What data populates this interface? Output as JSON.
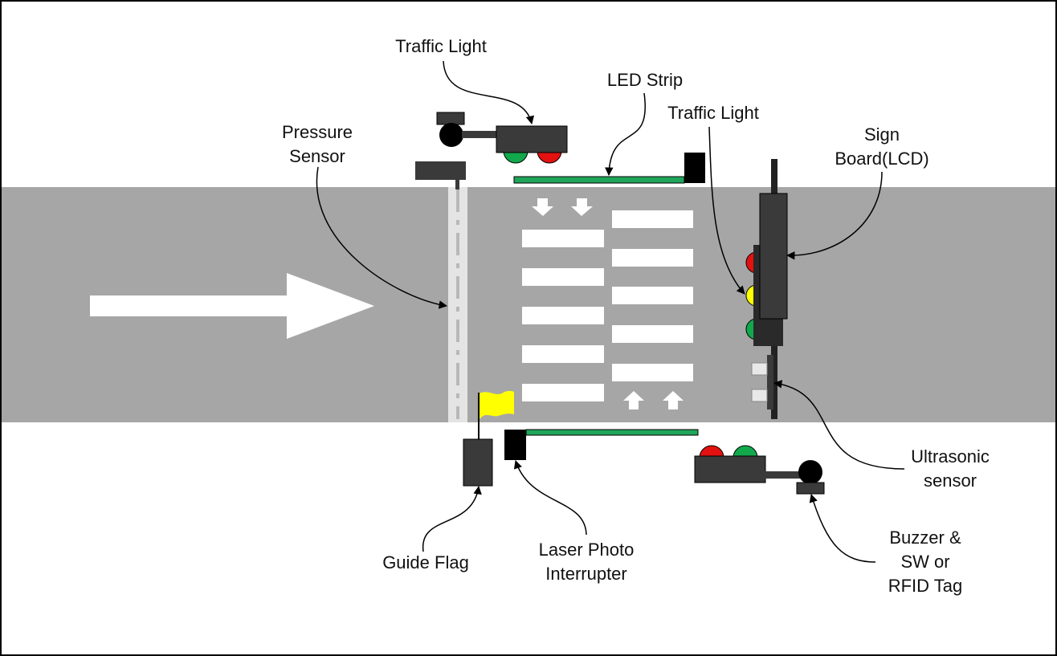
{
  "labels": {
    "traffic_light_top": "Traffic Light",
    "led_strip": "LED Strip",
    "traffic_light_right": "Traffic Light",
    "pressure_sensor_1": "Pressure",
    "pressure_sensor_2": "Sensor",
    "sign_board_1": "Sign",
    "sign_board_2": "Board(LCD)",
    "ultrasonic_1": "Ultrasonic",
    "ultrasonic_2": "sensor",
    "guide_flag": "Guide Flag",
    "laser_1": "Laser Photo",
    "laser_2": "Interrupter",
    "buzzer_1": "Buzzer &",
    "buzzer_2": "SW or",
    "buzzer_3": "RFID Tag"
  },
  "colors": {
    "road": "#a6a6a6",
    "device": "#3a3a3a",
    "led": "#1fa55a",
    "red": "#e3110f",
    "yellow": "#ffff00",
    "green": "#12a84c",
    "stripe": "#ffffff"
  }
}
